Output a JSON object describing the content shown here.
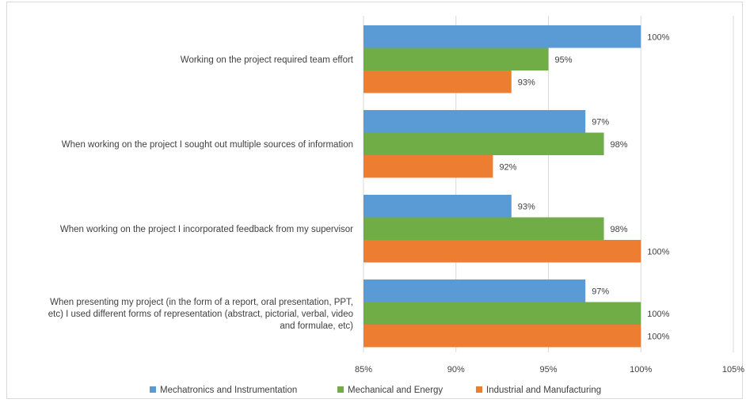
{
  "chart_data": {
    "type": "bar",
    "orientation": "horizontal",
    "categories": [
      "Working on the project required team effort",
      "When working on the project I sought out multiple sources of information",
      "When working on the project I incorporated feedback from my supervisor",
      "When presenting my project (in the form of a report, oral presentation, PPT, etc) I used different forms of representation (abstract, pictorial, verbal, video and formulae, etc)"
    ],
    "category_lines": [
      [
        "Working on the project required team effort"
      ],
      [
        "When working on the project I sought out multiple sources of information"
      ],
      [
        "When working on the project I incorporated feedback from my supervisor"
      ],
      [
        "When presenting my project (in the form of a report, oral presentation, PPT,",
        "etc) I used different forms of representation (abstract, pictorial, verbal, video",
        "and formulae, etc)"
      ]
    ],
    "series": [
      {
        "name": "Mechatronics and Instrumentation",
        "color": "#5b9bd5",
        "values": [
          100,
          97,
          93,
          97
        ],
        "labels": [
          "100%",
          "97%",
          "93%",
          "97%"
        ]
      },
      {
        "name": "Mechanical and Energy",
        "color": "#70ad47",
        "values": [
          95,
          98,
          98,
          100
        ],
        "labels": [
          "95%",
          "98%",
          "98%",
          "100%"
        ]
      },
      {
        "name": "Industrial and Manufacturing",
        "color": "#ed7d31",
        "values": [
          93,
          92,
          100,
          100
        ],
        "labels": [
          "93%",
          "92%",
          "100%",
          "100%"
        ]
      }
    ],
    "xlim": [
      85,
      105
    ],
    "xticks": [
      85,
      90,
      95,
      100,
      105
    ],
    "xtick_labels": [
      "85%",
      "90%",
      "95%",
      "100%",
      "105%"
    ],
    "grid": true,
    "legend_position": "bottom"
  }
}
